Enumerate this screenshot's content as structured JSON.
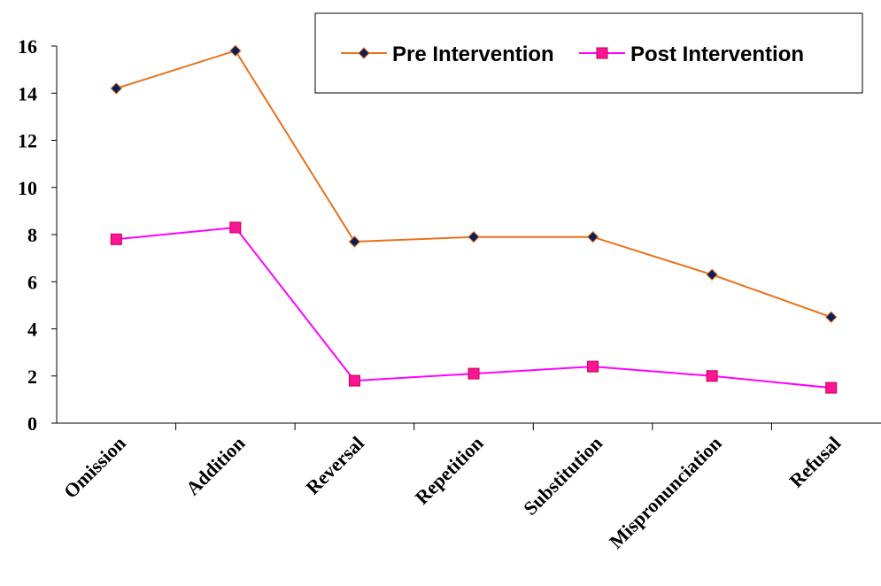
{
  "chart_data": {
    "type": "line",
    "categories": [
      "Omission",
      "Addition",
      "Reversal",
      "Repetition",
      "Substitution",
      "Mispronunciation",
      "Refusal"
    ],
    "series": [
      {
        "name": "Pre Intervention",
        "values": [
          14.2,
          15.8,
          7.7,
          7.9,
          7.9,
          6.3,
          4.5
        ],
        "color": "#E8711A",
        "marker": "diamond",
        "marker_fill": "#0A1E5C"
      },
      {
        "name": "Post Intervention",
        "values": [
          7.8,
          8.3,
          1.8,
          2.1,
          2.4,
          2.0,
          1.5
        ],
        "color": "#FF00FF",
        "marker": "square",
        "marker_fill": "#FF1493"
      }
    ],
    "ylim": [
      0,
      16
    ],
    "yticks": [
      "0",
      "2",
      "4",
      "6",
      "8",
      "10",
      "12",
      "14",
      "16"
    ],
    "grid": false,
    "legend_position": "top-right"
  }
}
